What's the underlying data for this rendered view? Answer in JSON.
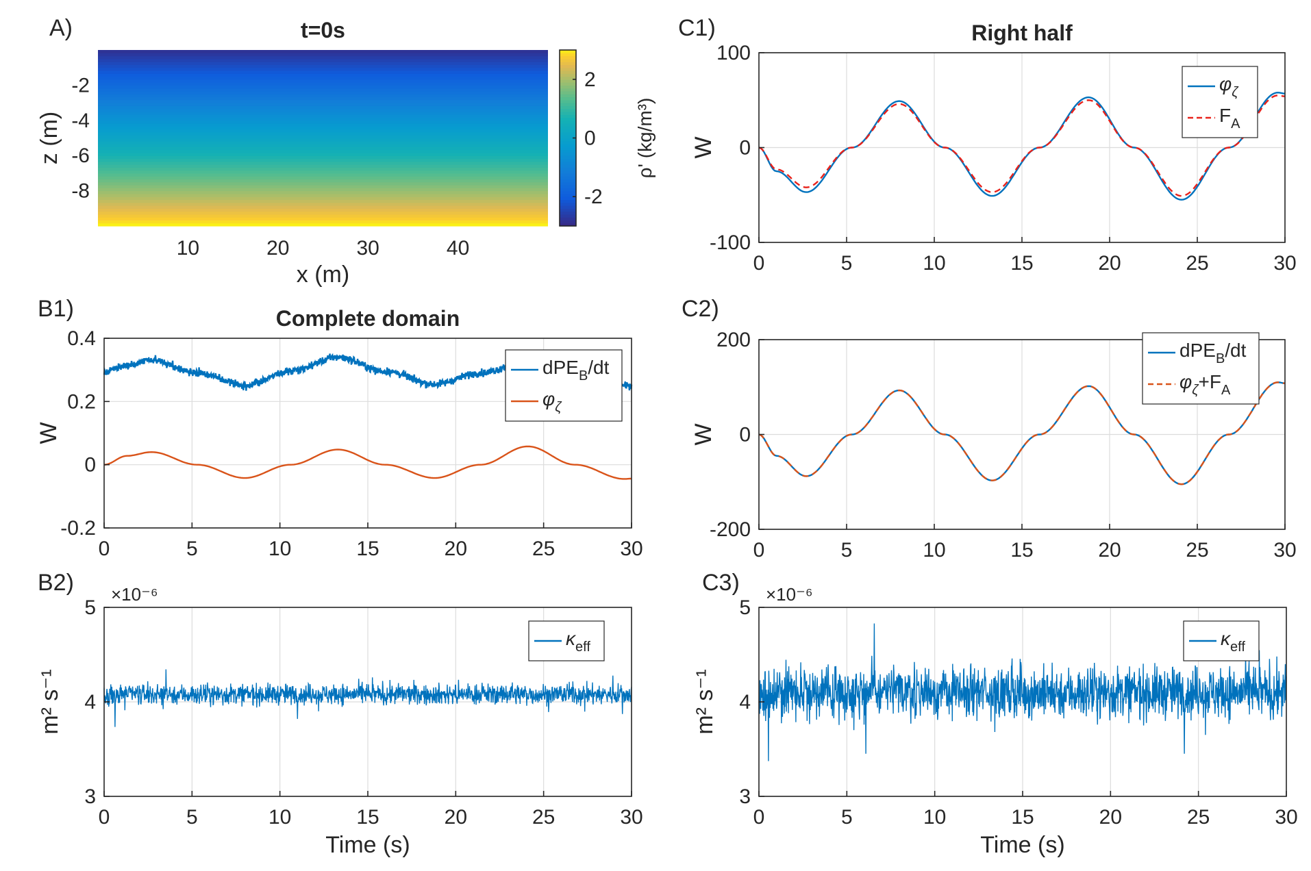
{
  "chart_data": [
    {
      "id": "A",
      "panel_label": "A)",
      "type": "heatmap",
      "title": "t=0s",
      "xlabel": "x (m)",
      "ylabel": "z (m)",
      "xlim": [
        0,
        50
      ],
      "ylim": [
        -10,
        0
      ],
      "xticks": [
        10,
        20,
        30,
        40
      ],
      "yticks": [
        -2,
        -4,
        -6,
        -8
      ],
      "colorbar": {
        "label": "ρ' (kg/m³)",
        "clim": [
          -3,
          3
        ],
        "ticks": [
          2,
          0,
          -2
        ],
        "colormap": "parula"
      },
      "field": "linear stratification: ρ' ≈ -3 at z=0 increasing to +3 at z=-10, uniform in x"
    },
    {
      "id": "C1",
      "panel_label": "C1)",
      "type": "line",
      "title": "Right half",
      "xlabel": "",
      "ylabel": "W",
      "xlim": [
        0,
        30
      ],
      "ylim": [
        -100,
        100
      ],
      "xticks": [
        0,
        5,
        10,
        15,
        20,
        25,
        30
      ],
      "yticks": [
        100,
        0,
        -100
      ],
      "grid": true,
      "legend": "top-right",
      "series": [
        {
          "name": "φζ",
          "legend_main": "φ",
          "legend_sub": "ζ",
          "color": "#0072BD",
          "style": "solid",
          "points": [
            [
              0,
              0
            ],
            [
              1,
              -25
            ],
            [
              2.7,
              -47
            ],
            [
              5.3,
              0
            ],
            [
              8,
              49
            ],
            [
              10.6,
              0
            ],
            [
              13.3,
              -51
            ],
            [
              16,
              0
            ],
            [
              18.8,
              53
            ],
            [
              21.4,
              0
            ],
            [
              24.1,
              -55
            ],
            [
              26.8,
              0
            ],
            [
              29.6,
              58
            ],
            [
              30,
              57
            ]
          ]
        },
        {
          "name": "FA",
          "legend_main": "F",
          "legend_sub": "A",
          "color": "#E8221B",
          "style": "dashed",
          "points": [
            [
              0,
              0
            ],
            [
              1,
              -23
            ],
            [
              2.7,
              -42
            ],
            [
              5.3,
              0
            ],
            [
              8,
              46
            ],
            [
              10.6,
              0
            ],
            [
              13.3,
              -47
            ],
            [
              16,
              0
            ],
            [
              18.8,
              50
            ],
            [
              21.4,
              0
            ],
            [
              24.1,
              -51
            ],
            [
              26.8,
              0
            ],
            [
              29.6,
              55
            ],
            [
              30,
              54
            ]
          ]
        }
      ]
    },
    {
      "id": "B1",
      "panel_label": "B1)",
      "type": "line",
      "title": "Complete domain",
      "xlabel": "",
      "ylabel": "W",
      "xlim": [
        0,
        30
      ],
      "ylim": [
        -0.2,
        0.4
      ],
      "xticks": [
        0,
        5,
        10,
        15,
        20,
        25,
        30
      ],
      "yticks": [
        0.4,
        0.2,
        0,
        -0.2
      ],
      "grid": true,
      "legend": "top-right",
      "series": [
        {
          "name": "dPEB/dt",
          "legend_main": "dPE",
          "legend_sub": "B",
          "legend_suffix": "/dt",
          "color": "#0072BD",
          "style": "noisy",
          "points": [
            [
              0,
              0.295
            ],
            [
              1.3,
              0.315
            ],
            [
              2.7,
              0.332
            ],
            [
              5.3,
              0.29
            ],
            [
              8,
              0.252
            ],
            [
              10.6,
              0.295
            ],
            [
              13.3,
              0.34
            ],
            [
              16,
              0.295
            ],
            [
              18.8,
              0.255
            ],
            [
              21.4,
              0.29
            ],
            [
              24.1,
              0.33
            ],
            [
              26.8,
              0.29
            ],
            [
              29.6,
              0.25
            ],
            [
              30,
              0.25
            ]
          ]
        },
        {
          "name": "φζ",
          "legend_main": "φ",
          "legend_sub": "ζ",
          "color": "#D95319",
          "style": "solid",
          "points": [
            [
              0,
              0
            ],
            [
              1.3,
              0.028
            ],
            [
              2.7,
              0.04
            ],
            [
              5.3,
              0
            ],
            [
              8,
              -0.042
            ],
            [
              10.6,
              0
            ],
            [
              13.3,
              0.048
            ],
            [
              16,
              0
            ],
            [
              18.8,
              -0.042
            ],
            [
              21.4,
              0
            ],
            [
              24.1,
              0.058
            ],
            [
              26.8,
              0
            ],
            [
              29.6,
              -0.045
            ],
            [
              30,
              -0.044
            ]
          ]
        }
      ]
    },
    {
      "id": "C2",
      "panel_label": "C2)",
      "type": "line",
      "title": "",
      "xlabel": "",
      "ylabel": "W",
      "xlim": [
        0,
        30
      ],
      "ylim": [
        -200,
        200
      ],
      "xticks": [
        0,
        5,
        10,
        15,
        20,
        25,
        30
      ],
      "yticks": [
        200,
        0,
        -200
      ],
      "grid": true,
      "legend": "top-right",
      "series": [
        {
          "name": "dPEB/dt",
          "legend_main": "dPE",
          "legend_sub": "B",
          "legend_suffix": "/dt",
          "color": "#0072BD",
          "style": "solid",
          "points": [
            [
              0,
              0
            ],
            [
              1,
              -45
            ],
            [
              2.7,
              -88
            ],
            [
              5.3,
              0
            ],
            [
              8,
              93
            ],
            [
              10.6,
              0
            ],
            [
              13.3,
              -97
            ],
            [
              16,
              0
            ],
            [
              18.8,
              102
            ],
            [
              21.4,
              0
            ],
            [
              24.1,
              -105
            ],
            [
              26.8,
              0
            ],
            [
              29.6,
              110
            ],
            [
              30,
              108
            ]
          ]
        },
        {
          "name": "φζ+FA",
          "legend_main": "φ",
          "legend_sub": "ζ",
          "legend_suffix": "+F",
          "legend_sub2": "A",
          "color": "#D95319",
          "style": "dashed",
          "points": [
            [
              0,
              0
            ],
            [
              1,
              -45
            ],
            [
              2.7,
              -88
            ],
            [
              5.3,
              0
            ],
            [
              8,
              93
            ],
            [
              10.6,
              0
            ],
            [
              13.3,
              -97
            ],
            [
              16,
              0
            ],
            [
              18.8,
              102
            ],
            [
              21.4,
              0
            ],
            [
              24.1,
              -105
            ],
            [
              26.8,
              0
            ],
            [
              29.6,
              110
            ],
            [
              30,
              108
            ]
          ]
        }
      ]
    },
    {
      "id": "B2",
      "panel_label": "B2)",
      "type": "line",
      "title": "",
      "xlabel": "Time (s)",
      "ylabel": "m² s⁻¹",
      "multiplier": "×10⁻⁶",
      "xlim": [
        0,
        30
      ],
      "ylim": [
        3,
        5
      ],
      "xticks": [
        0,
        5,
        10,
        15,
        20,
        25,
        30
      ],
      "yticks": [
        5,
        4,
        3
      ],
      "grid": true,
      "legend": "top-right",
      "series": [
        {
          "name": "κeff",
          "legend_main": "κ",
          "legend_sub": "eff",
          "color": "#0072BD",
          "style": "noise",
          "mean": 4.08,
          "amplitude": 0.12
        }
      ]
    },
    {
      "id": "C3",
      "panel_label": "C3)",
      "type": "line",
      "title": "",
      "xlabel": "Time (s)",
      "ylabel": "m² s⁻¹",
      "multiplier": "×10⁻⁶",
      "xlim": [
        0,
        30
      ],
      "ylim": [
        3,
        5
      ],
      "xticks": [
        0,
        5,
        10,
        15,
        20,
        25,
        30
      ],
      "yticks": [
        5,
        4,
        3
      ],
      "grid": true,
      "legend": "top-right",
      "series": [
        {
          "name": "κeff",
          "legend_main": "κ",
          "legend_sub": "eff",
          "color": "#0072BD",
          "style": "noise",
          "mean": 4.1,
          "amplitude": 0.3
        }
      ]
    }
  ]
}
